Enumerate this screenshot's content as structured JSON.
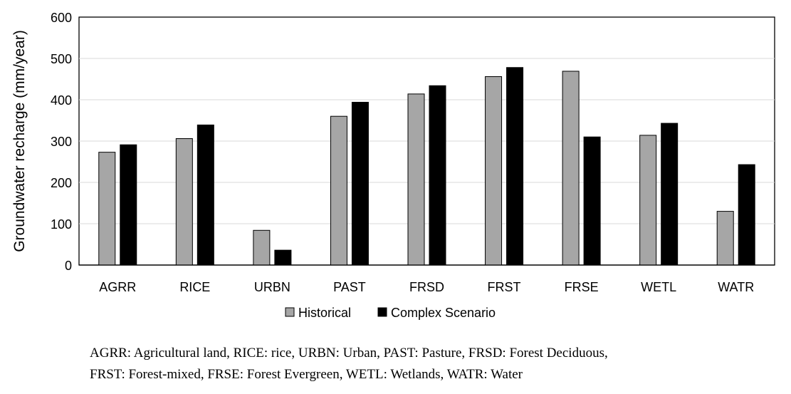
{
  "chart_data": {
    "type": "bar",
    "ylabel": "Groundwater recharge (mm/year)",
    "xlabel": "",
    "ylim": [
      0,
      600
    ],
    "yticks": [
      0,
      100,
      200,
      300,
      400,
      500,
      600
    ],
    "grid": true,
    "legend_position": "bottom",
    "categories": [
      "AGRR",
      "RICE",
      "URBN",
      "PAST",
      "FRSD",
      "FRST",
      "FRSE",
      "WETL",
      "WATR"
    ],
    "series": [
      {
        "name": "Historical",
        "color": "#a6a6a6",
        "values": [
          273,
          306,
          84,
          360,
          414,
          456,
          469,
          314,
          130
        ]
      },
      {
        "name": "Complex Scenario",
        "color": "#000000",
        "values": [
          291,
          339,
          36,
          394,
          434,
          478,
          310,
          343,
          243
        ]
      }
    ]
  },
  "caption": {
    "line1": "AGRR: Agricultural land, RICE: rice, URBN: Urban, PAST: Pasture, FRSD: Forest Deciduous,",
    "line2": "FRST: Forest-mixed, FRSE: Forest Evergreen, WETL: Wetlands, WATR: Water"
  }
}
